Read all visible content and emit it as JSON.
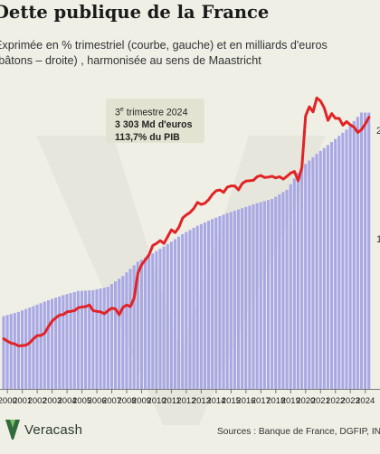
{
  "header": {
    "title": "Dette publique de la France",
    "subtitle_line1": "Exprimée en % trimestriel (courbe, gauche) et en milliards d'euros",
    "subtitle_line2": "(bâtons – droite) , harmonisée au sens de Maastricht"
  },
  "callout": {
    "quarter_num": "3",
    "quarter_sup": "e",
    "quarter_rest": " trimestre 2024",
    "amount": "3 303 Md d'euros",
    "ratio": "113,7% du PIB"
  },
  "footer": {
    "brand": "Veracash",
    "sources": "Sources : Banque de France, DGFIP, INSEE"
  },
  "colors": {
    "background": "#efefe6",
    "bars": "#a9a8e6",
    "line": "#e22326",
    "text": "#1a1a1a"
  },
  "chart_data": {
    "type": "bar+line",
    "x_tick_labels": [
      "2000",
      "2001",
      "2002",
      "2003",
      "2004",
      "2005",
      "2006",
      "2007",
      "2008",
      "2009",
      "2010",
      "2011",
      "2012",
      "2013",
      "2014",
      "2015",
      "2016",
      "2017",
      "2018",
      "2019",
      "2020",
      "2021",
      "2022",
      "2023",
      "2024"
    ],
    "quarters_per_year": 4,
    "series": [
      {
        "kind": "bar",
        "axis": "right",
        "unit": "Md d'euros",
        "annual_anchor_values": [
          870,
          920,
          990,
          1060,
          1120,
          1170,
          1180,
          1220,
          1350,
          1520,
          1620,
          1730,
          1850,
          1950,
          2030,
          2100,
          2160,
          2220,
          2270,
          2380,
          2650,
          2810,
          2950,
          3100,
          3303
        ]
      },
      {
        "kind": "line",
        "axis": "left",
        "unit": "% du PIB",
        "quarterly_values": [
          58.6,
          58.0,
          57.5,
          57.3,
          56.8,
          56.9,
          57.0,
          57.6,
          58.6,
          59.4,
          59.4,
          60.0,
          61.6,
          63.0,
          63.8,
          64.5,
          64.6,
          65.3,
          65.4,
          65.6,
          66.3,
          66.5,
          66.6,
          67.0,
          65.6,
          65.4,
          65.3,
          64.8,
          65.6,
          66.2,
          66.0,
          64.6,
          66.4,
          67.0,
          66.6,
          68.7,
          74.9,
          77.0,
          78.2,
          79.5,
          81.8,
          82.3,
          83.0,
          82.3,
          84.0,
          85.7,
          85.0,
          86.3,
          88.6,
          89.4,
          90.0,
          91.0,
          92.5,
          92.0,
          92.3,
          93.2,
          94.5,
          95.4,
          95.6,
          95.0,
          96.3,
          96.6,
          96.6,
          95.6,
          97.2,
          97.8,
          97.9,
          98.0,
          98.9,
          99.2,
          98.7,
          98.8,
          99.0,
          98.6,
          98.9,
          98.3,
          99.0,
          99.8,
          100.2,
          97.9,
          101.2,
          114.0,
          116.3,
          115.0,
          118.5,
          117.7,
          116.0,
          112.9,
          114.6,
          113.4,
          113.4,
          111.7,
          112.6,
          111.8,
          111.2,
          109.9,
          110.6,
          112.0,
          113.7
        ]
      }
    ],
    "right_axis_tick_labels": [
      "2",
      "1"
    ]
  }
}
